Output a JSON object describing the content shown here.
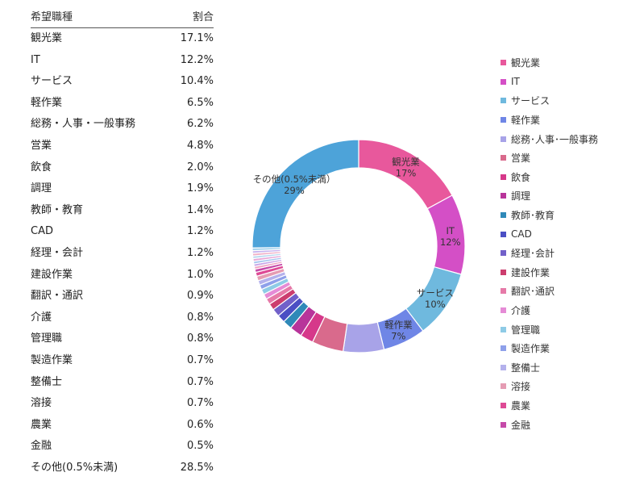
{
  "table": {
    "headers": {
      "category": "希望職種",
      "value": "割合"
    },
    "rows": [
      {
        "label": "観光業",
        "value": "17.1%"
      },
      {
        "label": "IT",
        "value": "12.2%"
      },
      {
        "label": "サービス",
        "value": "10.4%"
      },
      {
        "label": "軽作業",
        "value": "6.5%"
      },
      {
        "label": "総務・人事・一般事務",
        "value": "6.2%"
      },
      {
        "label": "営業",
        "value": "4.8%"
      },
      {
        "label": "飲食",
        "value": "2.0%"
      },
      {
        "label": "調理",
        "value": "1.9%"
      },
      {
        "label": "教師・教育",
        "value": "1.4%"
      },
      {
        "label": "CAD",
        "value": "1.2%"
      },
      {
        "label": "経理・会計",
        "value": "1.2%"
      },
      {
        "label": "建設作業",
        "value": "1.0%"
      },
      {
        "label": "翻訳・通訳",
        "value": "0.9%"
      },
      {
        "label": "介護",
        "value": "0.8%"
      },
      {
        "label": "管理職",
        "value": "0.8%"
      },
      {
        "label": "製造作業",
        "value": "0.7%"
      },
      {
        "label": "整備士",
        "value": "0.7%"
      },
      {
        "label": "溶接",
        "value": "0.7%"
      },
      {
        "label": "農業",
        "value": "0.6%"
      },
      {
        "label": "金融",
        "value": "0.5%"
      },
      {
        "label": "その他(0.5%未満)",
        "value": "28.5%"
      }
    ]
  },
  "legend": {
    "items": [
      {
        "label": "観光業",
        "color": "#e8589c"
      },
      {
        "label": "IT",
        "color": "#d44fc6"
      },
      {
        "label": "サービス",
        "color": "#6fb9de"
      },
      {
        "label": "軽作業",
        "color": "#6f86e6"
      },
      {
        "label": "総務･人事･一般事務",
        "color": "#a8a3e8"
      },
      {
        "label": "営業",
        "color": "#d96a8c"
      },
      {
        "label": "飲食",
        "color": "#d6388a"
      },
      {
        "label": "調理",
        "color": "#b8349a"
      },
      {
        "label": "教師･教育",
        "color": "#2f89b8"
      },
      {
        "label": "CAD",
        "color": "#4b4fc4"
      },
      {
        "label": "経理･会計",
        "color": "#7160c9"
      },
      {
        "label": "建設作業",
        "color": "#cc3d6e"
      },
      {
        "label": "翻訳･通訳",
        "color": "#e67aa8"
      },
      {
        "label": "介護",
        "color": "#e58bd6"
      },
      {
        "label": "管理職",
        "color": "#8ecbe6"
      },
      {
        "label": "製造作業",
        "color": "#8ea0ea"
      },
      {
        "label": "整備士",
        "color": "#b4b1ec"
      },
      {
        "label": "溶接",
        "color": "#e59cb3"
      },
      {
        "label": "農業",
        "color": "#de4a95"
      },
      {
        "label": "金融",
        "color": "#c54aa9"
      }
    ]
  },
  "chart_data": {
    "type": "pie",
    "style": "donut",
    "categories": [
      "観光業",
      "IT",
      "サービス",
      "軽作業",
      "総務・人事・一般事務",
      "営業",
      "飲食",
      "調理",
      "教師・教育",
      "CAD",
      "経理・会計",
      "建設作業",
      "翻訳・通訳",
      "介護",
      "管理職",
      "製造作業",
      "整備士",
      "溶接",
      "農業",
      "金融",
      "その他(0.5%未満)"
    ],
    "values": [
      17.1,
      12.2,
      10.4,
      6.5,
      6.2,
      4.8,
      2.0,
      1.9,
      1.4,
      1.2,
      1.2,
      1.0,
      0.9,
      0.8,
      0.8,
      0.7,
      0.7,
      0.7,
      0.6,
      0.5,
      28.5
    ],
    "other_small_slice_values": [
      0.4,
      0.4,
      0.4,
      0.4,
      0.4,
      0.4,
      0.4,
      0.4
    ],
    "other_color": "#4da3d9",
    "data_labels": [
      {
        "category": "観光業",
        "label": "観光業",
        "percent": "17%"
      },
      {
        "category": "IT",
        "label": "IT",
        "percent": "12%"
      },
      {
        "category": "サービス",
        "label": "サービス",
        "percent": "10%"
      },
      {
        "category": "軽作業",
        "label": "軽作業",
        "percent": "7%"
      },
      {
        "category": "その他(0.5%未満)",
        "label": "その他(0.5%未満）",
        "percent": "29%"
      }
    ],
    "legend_position": "right"
  }
}
